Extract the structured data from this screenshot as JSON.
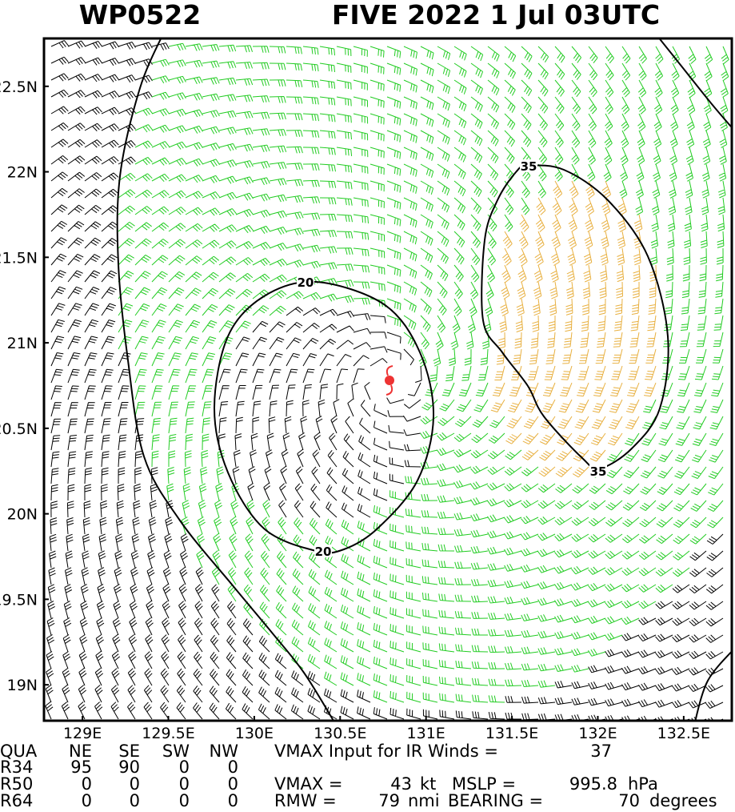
{
  "chart_data": {
    "type": "barbs",
    "title_left": "WP0522",
    "title_right": "FIVE 2022  1 Jul 03UTC",
    "xlim": [
      128.776,
      132.78
    ],
    "ylim": [
      18.79,
      22.78
    ],
    "xticks": [
      {
        "value": 129,
        "label": "129E"
      },
      {
        "value": 129.5,
        "label": "129.5E"
      },
      {
        "value": 130,
        "label": "130E"
      },
      {
        "value": 130.5,
        "label": "130.5E"
      },
      {
        "value": 131,
        "label": "131E"
      },
      {
        "value": 131.5,
        "label": "131.5E"
      },
      {
        "value": 132,
        "label": "132E"
      },
      {
        "value": 132.5,
        "label": "132.5E"
      }
    ],
    "yticks": [
      {
        "value": 19,
        "label": "19N"
      },
      {
        "value": 19.5,
        "label": "19.5N"
      },
      {
        "value": 20,
        "label": "20N"
      },
      {
        "value": 20.5,
        "label": "20.5N"
      },
      {
        "value": 21,
        "label": "21N"
      },
      {
        "value": 21.5,
        "label": "21.5N"
      },
      {
        "value": 22,
        "label": "22N"
      },
      {
        "value": 22.5,
        "label": "22.5N"
      }
    ],
    "contour_levels": [
      20,
      35
    ],
    "colors": {
      "low": "#000000",
      "mid": "#22cc22",
      "high": "#e8b040",
      "center": "#ee3333"
    },
    "info": {
      "header": [
        "QUA",
        "NE",
        "SE",
        "SW",
        "NW"
      ],
      "rows": [
        [
          "R34",
          95,
          90,
          0,
          0
        ],
        [
          "R50",
          0,
          0,
          0,
          0
        ],
        [
          "R64",
          0,
          0,
          0,
          0
        ]
      ],
      "vmax_input_label": "VMAX Input for IR Winds =",
      "vmax_input": 37,
      "vmax_label": "VMAX =",
      "vmax": 43,
      "vmax_unit": "kt",
      "mslp_label": "MSLP =",
      "mslp": 995.8,
      "mslp_unit": "hPa",
      "rmw_label": "RMW =",
      "rmw": 79,
      "rmw_unit": "nmi",
      "bearing_label": "BEARING =",
      "bearing": 70,
      "bearing_unit": "degrees"
    }
  }
}
